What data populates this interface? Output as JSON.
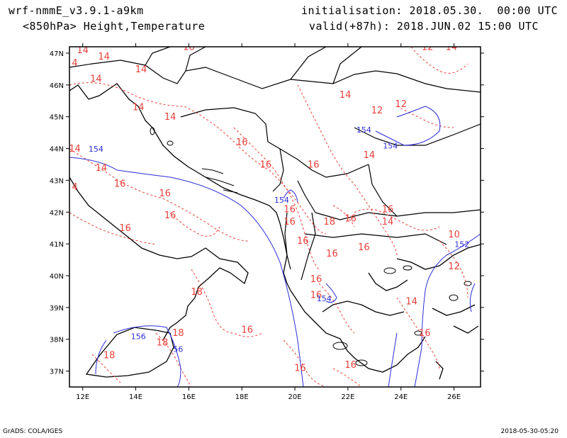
{
  "header": {
    "model": "wrf-nmmE_v3.9.1-a9km",
    "fields": "<850hPa> Height,Temperature",
    "init": "initialisation: 2018.05.30.  00:00 UTC",
    "valid": "valid(+87h): 2018.JUN.02 15:00 UTC"
  },
  "axes": {
    "lon_ticks": [
      "12E",
      "14E",
      "16E",
      "18E",
      "20E",
      "22E",
      "24E",
      "26E"
    ],
    "lat_ticks": [
      "47N",
      "46N",
      "45N",
      "44N",
      "43N",
      "42N",
      "41N",
      "40N",
      "39N",
      "38N",
      "37N"
    ],
    "lon_range": [
      11.5,
      27.0
    ],
    "lat_range": [
      36.5,
      47.2
    ]
  },
  "colors": {
    "temperature": "#e8403a",
    "height": "#2c2cd8",
    "coast": "#000000"
  },
  "temperature_labels": [
    {
      "text": "14",
      "lon": 12.0,
      "lat": 47.0
    },
    {
      "text": "14",
      "lon": 12.8,
      "lat": 46.8
    },
    {
      "text": "4",
      "lon": 11.7,
      "lat": 46.6
    },
    {
      "text": "14",
      "lon": 14.2,
      "lat": 46.4
    },
    {
      "text": "14",
      "lon": 12.5,
      "lat": 46.1
    },
    {
      "text": "14",
      "lon": 14.1,
      "lat": 45.2
    },
    {
      "text": "14",
      "lon": 15.3,
      "lat": 44.9
    },
    {
      "text": "14",
      "lon": 11.7,
      "lat": 43.9
    },
    {
      "text": "14",
      "lon": 12.7,
      "lat": 43.3
    },
    {
      "text": "4",
      "lon": 11.7,
      "lat": 42.7
    },
    {
      "text": "16",
      "lon": 13.4,
      "lat": 42.8
    },
    {
      "text": "16",
      "lon": 15.1,
      "lat": 42.5
    },
    {
      "text": "16",
      "lon": 15.3,
      "lat": 41.8
    },
    {
      "text": "16",
      "lon": 13.6,
      "lat": 41.4
    },
    {
      "text": "16",
      "lon": 16.0,
      "lat": 47.1
    },
    {
      "text": "16",
      "lon": 18.0,
      "lat": 44.1
    },
    {
      "text": "16",
      "lon": 18.9,
      "lat": 43.4
    },
    {
      "text": "16",
      "lon": 20.7,
      "lat": 43.4
    },
    {
      "text": "16",
      "lon": 19.8,
      "lat": 42.0
    },
    {
      "text": "16",
      "lon": 19.8,
      "lat": 41.6
    },
    {
      "text": "16",
      "lon": 20.3,
      "lat": 41.0
    },
    {
      "text": "18",
      "lon": 21.3,
      "lat": 41.6
    },
    {
      "text": "16",
      "lon": 22.1,
      "lat": 41.7
    },
    {
      "text": "16",
      "lon": 23.5,
      "lat": 42.0
    },
    {
      "text": "14",
      "lon": 23.5,
      "lat": 41.6
    },
    {
      "text": "16",
      "lon": 21.4,
      "lat": 40.6
    },
    {
      "text": "16",
      "lon": 22.6,
      "lat": 40.8
    },
    {
      "text": "16",
      "lon": 20.8,
      "lat": 39.8
    },
    {
      "text": "16",
      "lon": 20.8,
      "lat": 39.3
    },
    {
      "text": "14",
      "lon": 24.4,
      "lat": 39.1
    },
    {
      "text": "12",
      "lon": 26.0,
      "lat": 40.2
    },
    {
      "text": "10",
      "lon": 26.0,
      "lat": 41.2
    },
    {
      "text": "16",
      "lon": 24.9,
      "lat": 38.1
    },
    {
      "text": "18",
      "lon": 16.3,
      "lat": 39.4
    },
    {
      "text": "18",
      "lon": 15.6,
      "lat": 38.1
    },
    {
      "text": "18",
      "lon": 15.0,
      "lat": 37.8
    },
    {
      "text": "18",
      "lon": 13.0,
      "lat": 37.4
    },
    {
      "text": "16",
      "lon": 18.2,
      "lat": 38.2
    },
    {
      "text": "16",
      "lon": 20.2,
      "lat": 37.0
    },
    {
      "text": "16",
      "lon": 22.1,
      "lat": 37.1
    },
    {
      "text": "14",
      "lon": 21.9,
      "lat": 45.6
    },
    {
      "text": "12",
      "lon": 23.1,
      "lat": 45.1
    },
    {
      "text": "12",
      "lon": 24.0,
      "lat": 45.3
    },
    {
      "text": "12",
      "lon": 25.0,
      "lat": 47.1
    },
    {
      "text": "14",
      "lon": 25.9,
      "lat": 47.1
    },
    {
      "text": "14",
      "lon": 22.8,
      "lat": 43.7
    }
  ],
  "height_labels": [
    {
      "text": "154",
      "lon": 12.5,
      "lat": 43.9
    },
    {
      "text": "154",
      "lon": 19.5,
      "lat": 42.3
    },
    {
      "text": "154",
      "lon": 22.6,
      "lat": 44.5
    },
    {
      "text": "154",
      "lon": 23.6,
      "lat": 44.0
    },
    {
      "text": "154",
      "lon": 21.1,
      "lat": 39.2
    },
    {
      "text": "152",
      "lon": 26.3,
      "lat": 40.9
    },
    {
      "text": "156",
      "lon": 14.1,
      "lat": 38.0
    },
    {
      "text": "56",
      "lon": 15.6,
      "lat": 37.6
    }
  ],
  "footer": {
    "left": "GrADS: COLA/IGES",
    "right": "2018-05-30-05:20"
  }
}
